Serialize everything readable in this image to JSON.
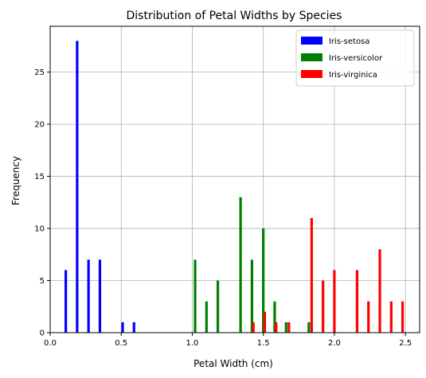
{
  "chart_data": {
    "type": "bar",
    "title": "Distribution of Petal Widths by Species",
    "xlabel": "Petal Width (cm)",
    "ylabel": "Frequency",
    "xlim": [
      0.0,
      2.6
    ],
    "ylim": [
      0,
      29.4
    ],
    "xticks": [
      0.0,
      0.5,
      1.0,
      1.5,
      2.0,
      2.5
    ],
    "xtick_labels": [
      "0.0",
      "0.5",
      "1.0",
      "1.5",
      "2.0",
      "2.5"
    ],
    "yticks": [
      0,
      5,
      10,
      15,
      20,
      25
    ],
    "ytick_labels": [
      "0",
      "5",
      "10",
      "15",
      "20",
      "25"
    ],
    "grid": true,
    "legend_position": "top-right",
    "series": [
      {
        "name": "Iris-setosa",
        "color": "#0000ff",
        "bars": [
          {
            "x": 0.11,
            "y": 6
          },
          {
            "x": 0.19,
            "y": 28
          },
          {
            "x": 0.27,
            "y": 7
          },
          {
            "x": 0.35,
            "y": 7
          },
          {
            "x": 0.51,
            "y": 1
          },
          {
            "x": 0.59,
            "y": 1
          }
        ]
      },
      {
        "name": "Iris-versicolor",
        "color": "#008000",
        "bars": [
          {
            "x": 1.02,
            "y": 7
          },
          {
            "x": 1.1,
            "y": 3
          },
          {
            "x": 1.18,
            "y": 5
          },
          {
            "x": 1.34,
            "y": 13
          },
          {
            "x": 1.42,
            "y": 7
          },
          {
            "x": 1.5,
            "y": 10
          },
          {
            "x": 1.58,
            "y": 3
          },
          {
            "x": 1.66,
            "y": 1
          },
          {
            "x": 1.82,
            "y": 1
          }
        ]
      },
      {
        "name": "Iris-virginica",
        "color": "#ff0000",
        "bars": [
          {
            "x": 1.43,
            "y": 1
          },
          {
            "x": 1.51,
            "y": 2
          },
          {
            "x": 1.59,
            "y": 1
          },
          {
            "x": 1.68,
            "y": 1
          },
          {
            "x": 1.84,
            "y": 11
          },
          {
            "x": 1.92,
            "y": 5
          },
          {
            "x": 2.0,
            "y": 6
          },
          {
            "x": 2.16,
            "y": 6
          },
          {
            "x": 2.24,
            "y": 3
          },
          {
            "x": 2.32,
            "y": 8
          },
          {
            "x": 2.4,
            "y": 3
          },
          {
            "x": 2.48,
            "y": 3
          }
        ]
      }
    ]
  }
}
